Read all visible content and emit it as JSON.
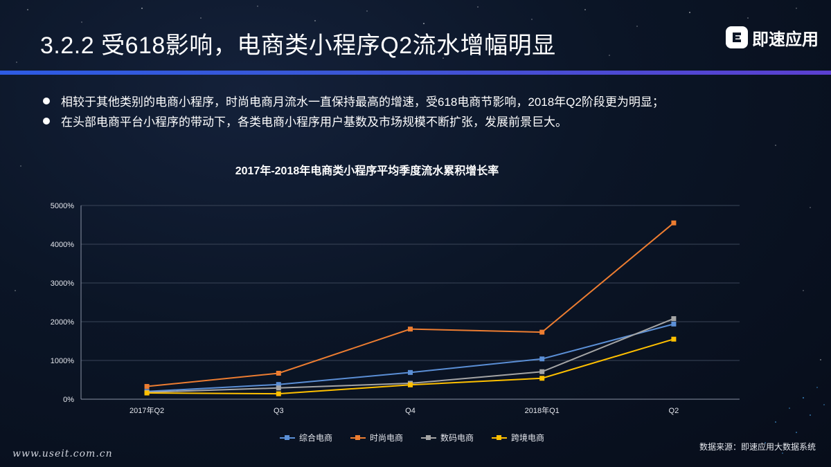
{
  "header": {
    "title": "3.2.2  受618影响，电商类小程序Q2流水增幅明显",
    "logo_text": "即速应用"
  },
  "bullets": [
    "相较于其他类别的电商小程序，时尚电商月流水一直保持最高的增速，受618电商节影响，2018年Q2阶段更为明显；",
    "在头部电商平台小程序的带动下，各类电商小程序用户基数及市场规模不断扩张，发展前景巨大。"
  ],
  "chart_data": {
    "type": "line",
    "title": "2017年-2018年电商类小程序平均季度流水累积增长率",
    "categories": [
      "2017年Q2",
      "Q3",
      "Q4",
      "2018年Q1",
      "Q2"
    ],
    "ylim": [
      0,
      5000
    ],
    "yticks": [
      0,
      1000,
      2000,
      3000,
      4000,
      5000
    ],
    "ytick_labels": [
      "0%",
      "1000%",
      "2000%",
      "3000%",
      "4000%",
      "5000%"
    ],
    "grid": true,
    "legend": "bottom",
    "series": [
      {
        "name": "综合电商",
        "color": "#5b8fd6",
        "values": [
          200,
          380,
          690,
          1040,
          1940
        ]
      },
      {
        "name": "时尚电商",
        "color": "#ed7d31",
        "values": [
          330,
          670,
          1810,
          1730,
          4550
        ]
      },
      {
        "name": "数码电商",
        "color": "#a5a5a5",
        "values": [
          180,
          290,
          410,
          710,
          2080
        ]
      },
      {
        "name": "跨境电商",
        "color": "#ffc000",
        "values": [
          160,
          140,
          370,
          540,
          1550
        ]
      }
    ]
  },
  "footer": {
    "source": "数据来源：即速应用大数据系统",
    "watermark": "www.useit.com.cn"
  }
}
